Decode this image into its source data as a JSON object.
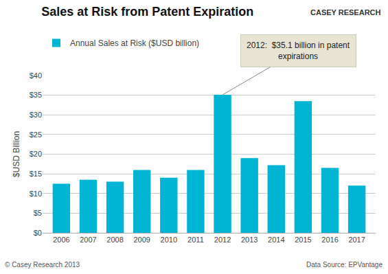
{
  "chart_data": {
    "type": "bar",
    "title": "Sales at Risk from Patent Expiration",
    "ylabel": "$USD Billion",
    "categories": [
      2006,
      2007,
      2008,
      2009,
      2010,
      2011,
      2012,
      2013,
      2014,
      2015,
      2016,
      2017
    ],
    "series": [
      {
        "name": "Annual Sales at Risk ($USD billion)",
        "color": "#00B4D4",
        "values": [
          12.5,
          13.5,
          13.0,
          16.0,
          14.0,
          16.0,
          35.1,
          19.0,
          17.2,
          33.5,
          16.5,
          12.0
        ]
      }
    ],
    "xlim": [
      2005.3,
      2017.7
    ],
    "xticks": [
      2006,
      2007,
      2008,
      2009,
      2010,
      2011,
      2012,
      2013,
      2014,
      2015,
      2016,
      2017
    ],
    "ylim": [
      0,
      40
    ],
    "yticks": [
      {
        "value": 0,
        "label": "$0"
      },
      {
        "value": 5,
        "label": "$5"
      },
      {
        "value": 10,
        "label": "$10"
      },
      {
        "value": 15,
        "label": "$15"
      },
      {
        "value": 20,
        "label": "$20"
      },
      {
        "value": 25,
        "label": "$25"
      },
      {
        "value": 30,
        "label": "$30"
      },
      {
        "value": 35,
        "label": "$35"
      },
      {
        "value": 40,
        "label": "$40"
      }
    ],
    "grid": true,
    "legend": "top",
    "annotations": [
      {
        "text": "2012:  $35.1 billion in patent\nexpirations",
        "x": 2012,
        "y": 35.1
      },
      {
        "text": "© Casey Research 2013"
      },
      {
        "text": "Data Source: EPVantage"
      },
      {
        "text": "CASEY RESEARCH"
      }
    ]
  }
}
